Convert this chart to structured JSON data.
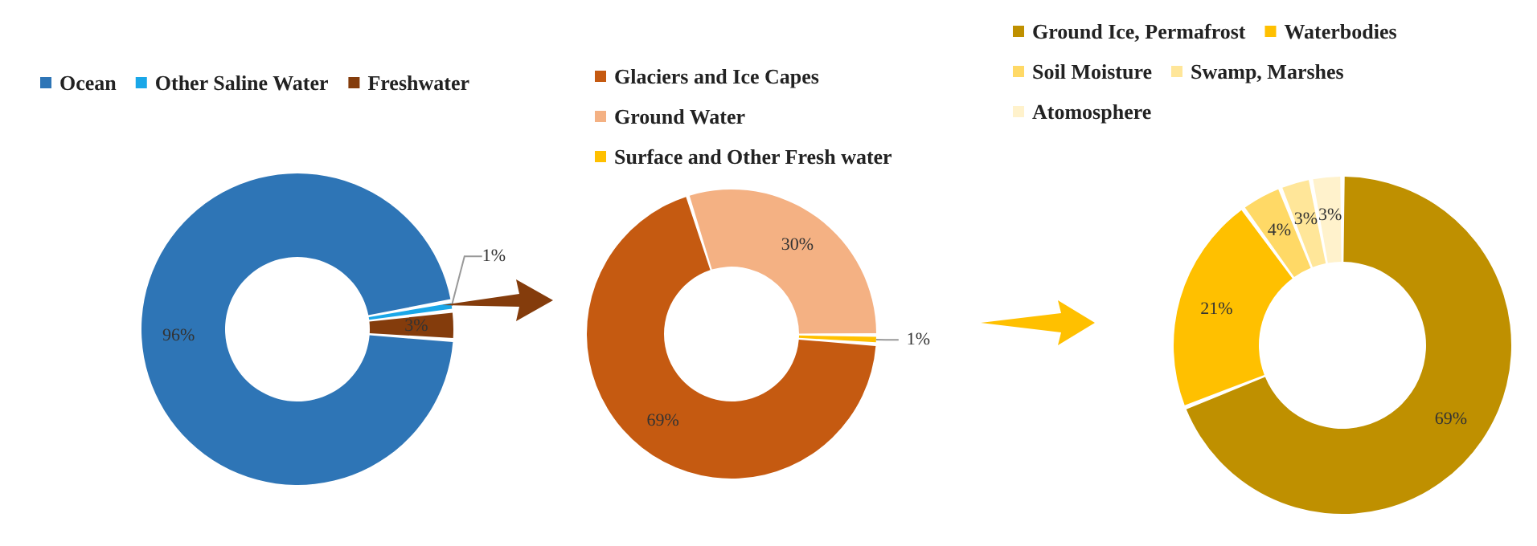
{
  "chart_data": [
    {
      "type": "donut",
      "categories": [
        "Ocean",
        "Other Saline Water",
        "Freshwater"
      ],
      "values": [
        96,
        1,
        3
      ],
      "value_labels": [
        "96%",
        "1%",
        "3%"
      ],
      "colors": [
        "#2e75b6",
        "#1aa7e8",
        "#843c0c"
      ],
      "legend": "top"
    },
    {
      "type": "donut",
      "categories": [
        "Glaciers and Ice Capes",
        "Ground Water",
        "Surface and Other Fresh water"
      ],
      "values": [
        69,
        30,
        1
      ],
      "value_labels": [
        "69%",
        "30%",
        "1%"
      ],
      "colors": [
        "#c55a11",
        "#f4b183",
        "#ffc000"
      ],
      "legend": "top"
    },
    {
      "type": "donut",
      "categories": [
        "Ground Ice, Permafrost",
        "Waterbodies",
        "Soil Moisture",
        "Swamp, Marshes",
        "Atomosphere"
      ],
      "values": [
        69,
        21,
        4,
        3,
        3
      ],
      "value_labels": [
        "69%",
        "21%",
        "4%",
        "3%",
        "3%"
      ],
      "colors": [
        "#bf9000",
        "#ffc000",
        "#ffd966",
        "#ffe699",
        "#fff2cc"
      ],
      "legend": "top"
    }
  ]
}
